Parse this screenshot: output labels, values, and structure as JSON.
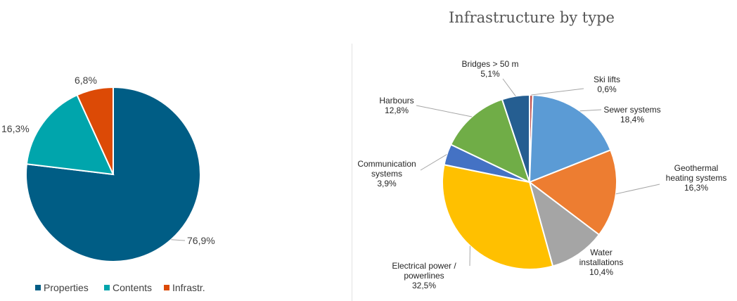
{
  "chart_data": [
    {
      "type": "pie",
      "title": "",
      "categories": [
        "Properties",
        "Contents",
        "Infrastr."
      ],
      "values": [
        76.9,
        16.3,
        6.8
      ],
      "labels": [
        "76,9%",
        "16,3%",
        "6,8%"
      ],
      "colors": [
        "#005D85",
        "#00A5AC",
        "#DC4A06"
      ],
      "legend_position": "bottom",
      "legend": [
        "Properties",
        "Contents",
        "Infrastr."
      ]
    },
    {
      "type": "pie",
      "title": "Infrastructure by type",
      "categories": [
        "Ski lifts",
        "Sewer systems",
        "Geothermal heating systems",
        "Water installations",
        "Electrical power / powerlines",
        "Communication systems",
        "Harbours",
        "Bridges > 50 m"
      ],
      "values": [
        0.6,
        18.4,
        16.3,
        10.4,
        32.5,
        3.9,
        12.8,
        5.1
      ],
      "labels": [
        [
          "Ski lifts",
          "0,6%"
        ],
        [
          "Sewer systems",
          "18,4%"
        ],
        [
          "Geothermal",
          "heating systems",
          "16,3%"
        ],
        [
          "Water",
          "installations",
          "10,4%"
        ],
        [
          "Electrical power /",
          "powerlines",
          "32,5%"
        ],
        [
          "Communication",
          "systems",
          "3,9%"
        ],
        [
          "Harbours",
          "12,8%"
        ],
        [
          "Bridges > 50 m",
          "5,1%"
        ]
      ],
      "colors": [
        "#C0504D",
        "#5B9BD5",
        "#ED7D31",
        "#A5A5A5",
        "#FFC000",
        "#4472C4",
        "#70AD47",
        "#255E91"
      ]
    }
  ]
}
